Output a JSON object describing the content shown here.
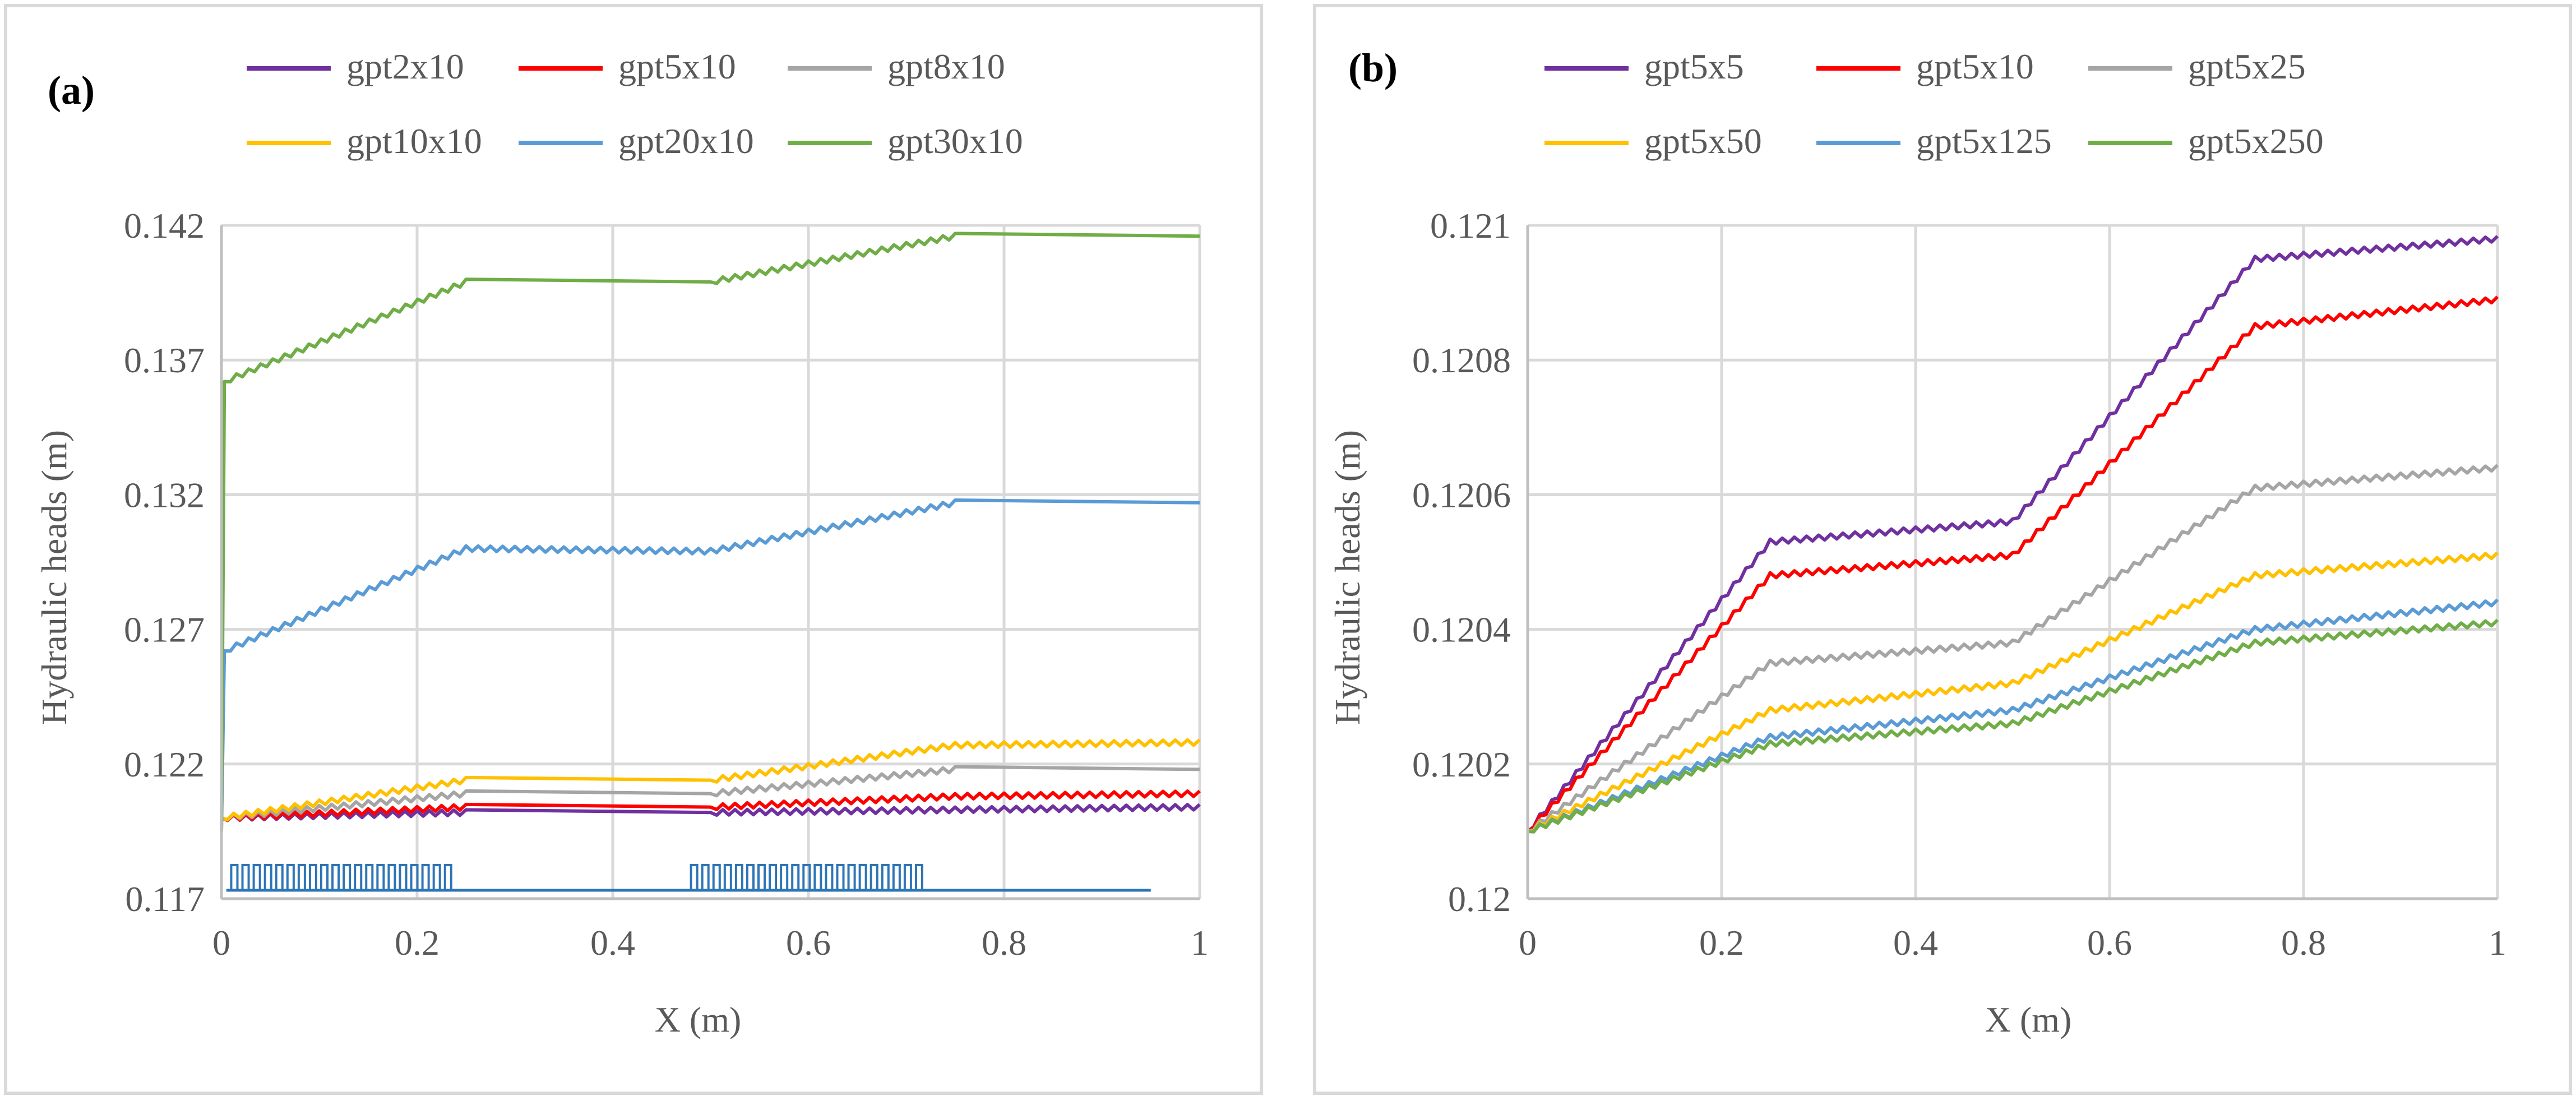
{
  "chart_data": [
    {
      "type": "line",
      "panel_label": "(a)",
      "xlabel": "X (m)",
      "ylabel": "Hydraulic heads (m)",
      "xlim": [
        0,
        1
      ],
      "ylim": [
        0.117,
        0.142
      ],
      "xticks": [
        0,
        0.2,
        0.4,
        0.6,
        0.8,
        1
      ],
      "xtick_labels": [
        "0",
        "0.2",
        "0.4",
        "0.6",
        "0.8",
        "1"
      ],
      "yticks": [
        0.117,
        0.122,
        0.127,
        0.132,
        0.137,
        0.142
      ],
      "ytick_labels": [
        "0.117",
        "0.122",
        "0.127",
        "0.132",
        "0.137",
        "0.142"
      ],
      "grid": true,
      "legend_position": "top",
      "series": [
        {
          "name": "gpt2x10",
          "color": "#7030A0",
          "points": [
            [
              0,
              0.12
            ],
            [
              0.25,
              0.1202
            ],
            [
              0.5,
              0.1202
            ],
            [
              0.75,
              0.1203
            ],
            [
              1,
              0.1204
            ]
          ]
        },
        {
          "name": "gpt5x10",
          "color": "#FF0000",
          "points": [
            [
              0,
              0.12
            ],
            [
              0.25,
              0.1204
            ],
            [
              0.5,
              0.1204
            ],
            [
              0.75,
              0.1208
            ],
            [
              1,
              0.1209
            ]
          ]
        },
        {
          "name": "gpt8x10",
          "color": "#A5A5A5",
          "points": [
            [
              0,
              0.12
            ],
            [
              0.25,
              0.1209
            ],
            [
              0.5,
              0.1209
            ],
            [
              0.75,
              0.1218
            ],
            [
              1,
              0.1218
            ]
          ]
        },
        {
          "name": "gpt10x10",
          "color": "#FFC000",
          "points": [
            [
              0,
              0.12
            ],
            [
              0.25,
              0.1214
            ],
            [
              0.5,
              0.1214
            ],
            [
              0.75,
              0.1227
            ],
            [
              1,
              0.1228
            ]
          ]
        },
        {
          "name": "gpt20x10",
          "color": "#5B9BD5",
          "points": [
            [
              0,
              0.1195
            ],
            [
              0.003,
              0.1262
            ],
            [
              0.25,
              0.13
            ],
            [
              0.5,
              0.1299
            ],
            [
              0.75,
              0.1317
            ],
            [
              1,
              0.1317
            ]
          ]
        },
        {
          "name": "gpt30x10",
          "color": "#70AD47",
          "points": [
            [
              0,
              0.1195
            ],
            [
              0.003,
              0.1362
            ],
            [
              0.25,
              0.1399
            ],
            [
              0.5,
              0.1399
            ],
            [
              0.75,
              0.1416
            ],
            [
              1,
              0.1416
            ]
          ]
        }
      ],
      "pumping_markers": {
        "color": "#2E75B6",
        "ranges": [
          [
            0.01,
            0.24
          ],
          [
            0.48,
            0.72
          ]
        ]
      }
    },
    {
      "type": "line",
      "panel_label": "(b)",
      "xlabel": "X (m)",
      "ylabel": "Hydraulic heads (m)",
      "xlim": [
        0,
        1
      ],
      "ylim": [
        0.12,
        0.121
      ],
      "xticks": [
        0,
        0.2,
        0.4,
        0.6,
        0.8,
        1
      ],
      "xtick_labels": [
        "0",
        "0.2",
        "0.4",
        "0.6",
        "0.8",
        "1"
      ],
      "yticks": [
        0.12,
        0.1202,
        0.1204,
        0.1206,
        0.1208,
        0.121
      ],
      "ytick_labels": [
        "0.12",
        "0.1202",
        "0.1204",
        "0.1206",
        "0.1208",
        "0.121"
      ],
      "grid": true,
      "legend_position": "top",
      "series": [
        {
          "name": "gpt5x5",
          "color": "#7030A0",
          "points": [
            [
              0,
              0.1201
            ],
            [
              0.25,
              0.12053
            ],
            [
              0.5,
              0.12056
            ],
            [
              0.75,
              0.12095
            ],
            [
              1,
              0.12098
            ]
          ]
        },
        {
          "name": "gpt5x10",
          "color": "#FF0000",
          "points": [
            [
              0,
              0.1201
            ],
            [
              0.25,
              0.12048
            ],
            [
              0.5,
              0.12051
            ],
            [
              0.75,
              0.12085
            ],
            [
              1,
              0.12089
            ]
          ]
        },
        {
          "name": "gpt5x25",
          "color": "#A5A5A5",
          "points": [
            [
              0,
              0.1201
            ],
            [
              0.25,
              0.12035
            ],
            [
              0.5,
              0.12038
            ],
            [
              0.75,
              0.12061
            ],
            [
              1,
              0.12064
            ]
          ]
        },
        {
          "name": "gpt5x50",
          "color": "#FFC000",
          "points": [
            [
              0,
              0.1201
            ],
            [
              0.25,
              0.12028
            ],
            [
              0.5,
              0.12032
            ],
            [
              0.75,
              0.12048
            ],
            [
              1,
              0.12051
            ]
          ]
        },
        {
          "name": "gpt5x125",
          "color": "#5B9BD5",
          "points": [
            [
              0,
              0.1201
            ],
            [
              0.25,
              0.12024
            ],
            [
              0.5,
              0.12028
            ],
            [
              0.75,
              0.1204
            ],
            [
              1,
              0.12044
            ]
          ]
        },
        {
          "name": "gpt5x250",
          "color": "#70AD47",
          "points": [
            [
              0,
              0.1201
            ],
            [
              0.25,
              0.12023
            ],
            [
              0.5,
              0.12026
            ],
            [
              0.75,
              0.12038
            ],
            [
              1,
              0.12041
            ]
          ]
        }
      ]
    }
  ]
}
